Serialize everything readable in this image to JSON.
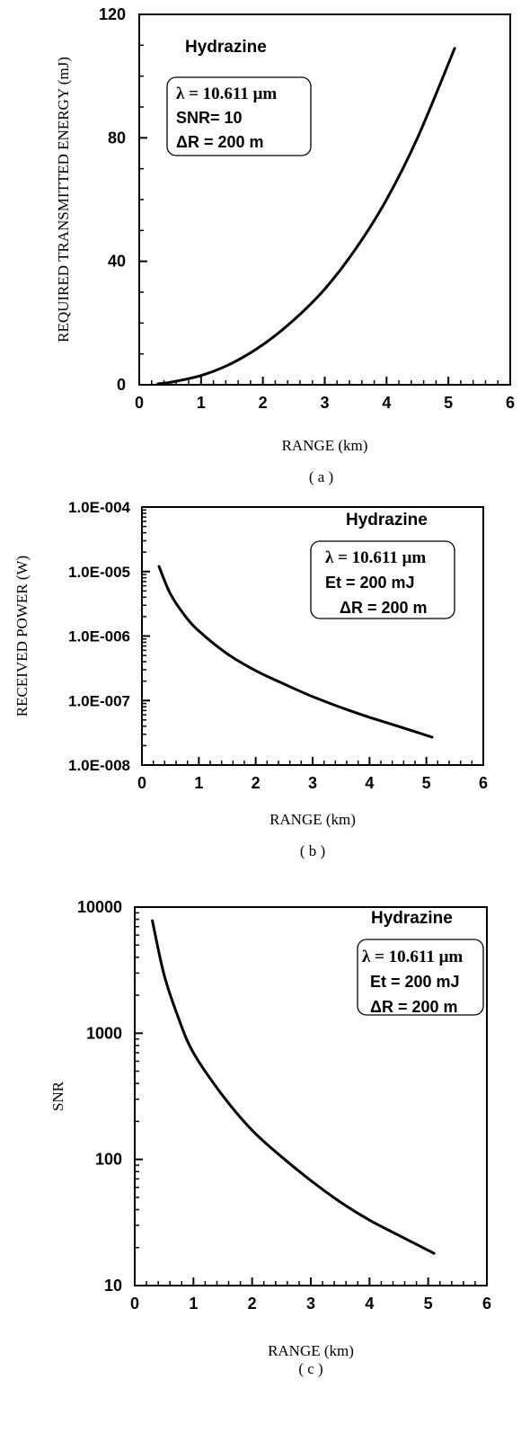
{
  "chart_data": [
    {
      "type": "line",
      "caption": "( a )",
      "xlabel": "RANGE (km)",
      "ylabel": "REQUIRED TRANSMITTED ENERGY (mJ)",
      "xlim": [
        0,
        6
      ],
      "ylim": [
        0,
        120
      ],
      "yscale": "linear",
      "x_ticks": [
        "0",
        "1",
        "2",
        "3",
        "4",
        "5",
        "6"
      ],
      "y_ticks": [
        "0",
        "40",
        "80",
        "120"
      ],
      "grid": false,
      "annotation": {
        "title": "Hydrazine",
        "lines": [
          "λ = 10.611 μm",
          "SNR= 10",
          "ΔR = 200 m"
        ]
      },
      "series": [
        {
          "x": [
            0.3,
            0.5,
            1.0,
            1.5,
            2.0,
            2.5,
            3.0,
            3.5,
            4.0,
            4.5,
            5.1
          ],
          "y": [
            0.3,
            0.8,
            3.0,
            7.0,
            13.0,
            21.0,
            31.0,
            44.0,
            60.0,
            80.0,
            109.0
          ]
        }
      ]
    },
    {
      "type": "line",
      "caption": "( b )",
      "xlabel": "RANGE (km)",
      "ylabel": "RECEIVED  POWER (W)",
      "xlim": [
        0,
        6
      ],
      "ylim": [
        1e-08,
        0.0001
      ],
      "yscale": "log",
      "x_ticks": [
        "0",
        "1",
        "2",
        "3",
        "4",
        "5",
        "6"
      ],
      "y_ticks": [
        "1.0E-008",
        "1.0E-007",
        "1.0E-006",
        "1.0E-005",
        "1.0E-004"
      ],
      "grid": false,
      "annotation": {
        "title": "Hydrazine",
        "lines": [
          "λ = 10.611 μm",
          "Et = 200 mJ",
          "ΔR = 200 m"
        ]
      },
      "series": [
        {
          "x": [
            0.3,
            0.5,
            0.75,
            1.0,
            1.5,
            2.0,
            2.5,
            3.0,
            3.5,
            4.0,
            4.5,
            5.1
          ],
          "y": [
            1.2e-05,
            4.5e-06,
            2.1e-06,
            1.2e-06,
            5.3e-07,
            2.9e-07,
            1.8e-07,
            1.15e-07,
            7.8e-08,
            5.5e-08,
            4e-08,
            2.7e-08
          ]
        }
      ]
    },
    {
      "type": "line",
      "caption": "( c )",
      "xlabel": "RANGE (km)",
      "ylabel": "SNR",
      "xlim": [
        0,
        6
      ],
      "ylim": [
        10,
        10000
      ],
      "yscale": "log",
      "x_ticks": [
        "0",
        "1",
        "2",
        "3",
        "4",
        "5",
        "6"
      ],
      "y_ticks": [
        "10",
        "100",
        "1000",
        "10000"
      ],
      "grid": false,
      "annotation": {
        "title": "Hydrazine",
        "lines": [
          "λ = 10.611 μm",
          "Et = 200 mJ",
          "ΔR = 200 m"
        ]
      },
      "series": [
        {
          "x": [
            0.3,
            0.5,
            0.75,
            1.0,
            1.5,
            2.0,
            2.5,
            3.0,
            3.5,
            4.0,
            4.5,
            5.1
          ],
          "y": [
            7800,
            2900,
            1300,
            700,
            320,
            170,
            105,
            68,
            46,
            33,
            25,
            18
          ]
        }
      ]
    }
  ]
}
